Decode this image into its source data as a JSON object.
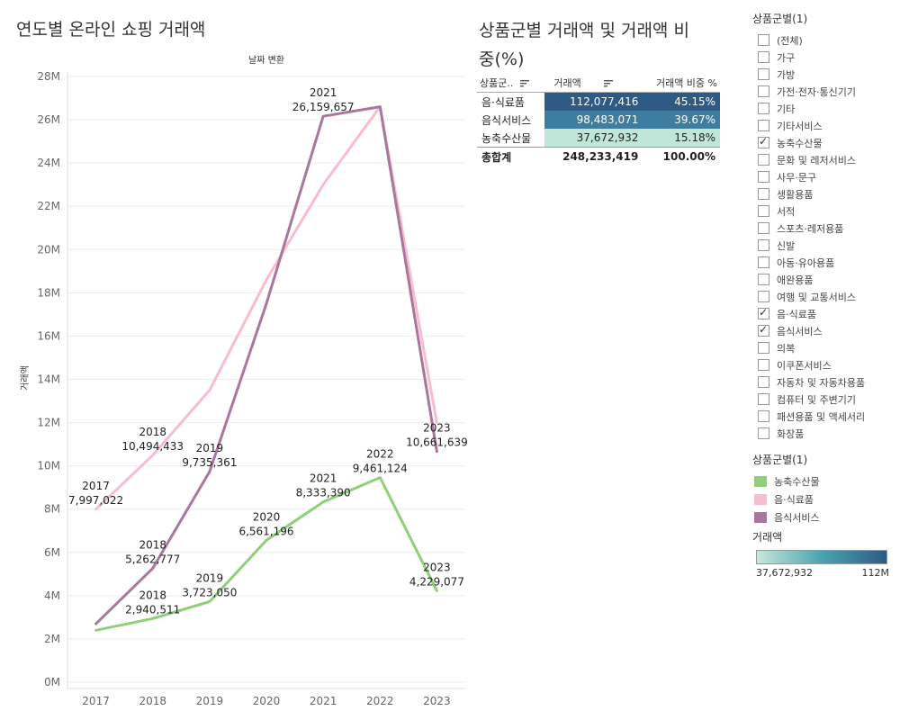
{
  "main_title": "연도별 온라인 쇼핑 거래액",
  "table_title": "상품군별 거래액 및 거래액 비중(%)",
  "chart_data": {
    "type": "line",
    "title": "연도별 온라인 쇼핑 거래액",
    "xlabel": "날짜 변환",
    "ylabel": "거래액",
    "x": [
      "2017",
      "2018",
      "2019",
      "2020",
      "2021",
      "2022",
      "2023"
    ],
    "ylim": [
      0,
      28000000
    ],
    "yticks": [
      0,
      2000000,
      4000000,
      6000000,
      8000000,
      10000000,
      12000000,
      14000000,
      16000000,
      18000000,
      20000000,
      22000000,
      24000000,
      26000000,
      28000000
    ],
    "ytick_labels": [
      "0M",
      "2M",
      "4M",
      "6M",
      "8M",
      "10M",
      "12M",
      "14M",
      "16M",
      "18M",
      "20M",
      "22M",
      "24M",
      "26M",
      "28M"
    ],
    "grid": true,
    "series": [
      {
        "name": "농축수산물",
        "color": "#8fce7a",
        "values": [
          2400000,
          2940511,
          3723050,
          6561196,
          8333390,
          9461124,
          4229077
        ]
      },
      {
        "name": "음·식료품",
        "color": "#f6bcd0",
        "values": [
          7997022,
          10494433,
          13500000,
          18600000,
          23000000,
          26600000,
          12000000
        ]
      },
      {
        "name": "음식서비스",
        "color": "#a9769e",
        "values": [
          2700000,
          5262777,
          9735361,
          17500000,
          26159657,
          26600000,
          10661639
        ]
      }
    ],
    "annotations": [
      {
        "year": "2017",
        "value": 7997022,
        "label": "7,997,022"
      },
      {
        "year": "2018",
        "value": 10494433,
        "label": "10,494,433"
      },
      {
        "year": "2018",
        "value": 5262777,
        "label": "5,262,777"
      },
      {
        "year": "2018",
        "value": 2940511,
        "label": "2,940,511"
      },
      {
        "year": "2019",
        "value": 9735361,
        "label": "9,735,361"
      },
      {
        "year": "2019",
        "value": 3723050,
        "label": "3,723,050"
      },
      {
        "year": "2020",
        "value": 6561196,
        "label": "6,561,196"
      },
      {
        "year": "2021",
        "value": 26159657,
        "label": "26,159,657"
      },
      {
        "year": "2021",
        "value": 8333390,
        "label": "8,333,390"
      },
      {
        "year": "2022",
        "value": 9461124,
        "label": "9,461,124"
      },
      {
        "year": "2023",
        "value": 10661639,
        "label": "10,661,639"
      },
      {
        "year": "2023",
        "value": 4229077,
        "label": "4,229,077"
      }
    ]
  },
  "table": {
    "headers": [
      "상품군..",
      "거래액",
      "거래액 비중 %"
    ],
    "rows": [
      {
        "category": "음·식료품",
        "amount": "112,077,416",
        "share": "45.15%",
        "bg": "#2d5b86",
        "fg": "#ffffff"
      },
      {
        "category": "음식서비스",
        "amount": "98,483,071",
        "share": "39.67%",
        "bg": "#3d7d9f",
        "fg": "#ffffff"
      },
      {
        "category": "농축수산물",
        "amount": "37,672,932",
        "share": "15.18%",
        "bg": "#bfe6d8",
        "fg": "#222222"
      }
    ],
    "total": {
      "label": "총합계",
      "amount": "248,233,419",
      "share": "100.00%"
    }
  },
  "filter": {
    "title": "상품군별(1)",
    "items": [
      {
        "label": "(전체)",
        "checked": false
      },
      {
        "label": "가구",
        "checked": false
      },
      {
        "label": "가방",
        "checked": false
      },
      {
        "label": "가전·전자·통신기기",
        "checked": false
      },
      {
        "label": "기타",
        "checked": false
      },
      {
        "label": "기타서비스",
        "checked": false
      },
      {
        "label": "농축수산물",
        "checked": true
      },
      {
        "label": "문화 및 레저서비스",
        "checked": false
      },
      {
        "label": "사무·문구",
        "checked": false
      },
      {
        "label": "생활용품",
        "checked": false
      },
      {
        "label": "서적",
        "checked": false
      },
      {
        "label": "스포츠·레저용품",
        "checked": false
      },
      {
        "label": "신발",
        "checked": false
      },
      {
        "label": "아동·유아용품",
        "checked": false
      },
      {
        "label": "애완용품",
        "checked": false
      },
      {
        "label": "여행 및 교통서비스",
        "checked": false
      },
      {
        "label": "음·식료품",
        "checked": true
      },
      {
        "label": "음식서비스",
        "checked": true
      },
      {
        "label": "의복",
        "checked": false
      },
      {
        "label": "이쿠폰서비스",
        "checked": false
      },
      {
        "label": "자동차 및 자동차용품",
        "checked": false
      },
      {
        "label": "컴퓨터 및 주변기기",
        "checked": false
      },
      {
        "label": "패션용품 및 액세서리",
        "checked": false
      },
      {
        "label": "화장품",
        "checked": false
      }
    ]
  },
  "legend": {
    "title": "상품군별(1)",
    "items": [
      {
        "label": "농축수산물",
        "color": "#8fce7a"
      },
      {
        "label": "음·식료품",
        "color": "#f6bcd0"
      },
      {
        "label": "음식서비스",
        "color": "#a9769e"
      }
    ]
  },
  "color_legend": {
    "title": "거래액",
    "min_label": "37,672,932",
    "max_label": "112M"
  }
}
